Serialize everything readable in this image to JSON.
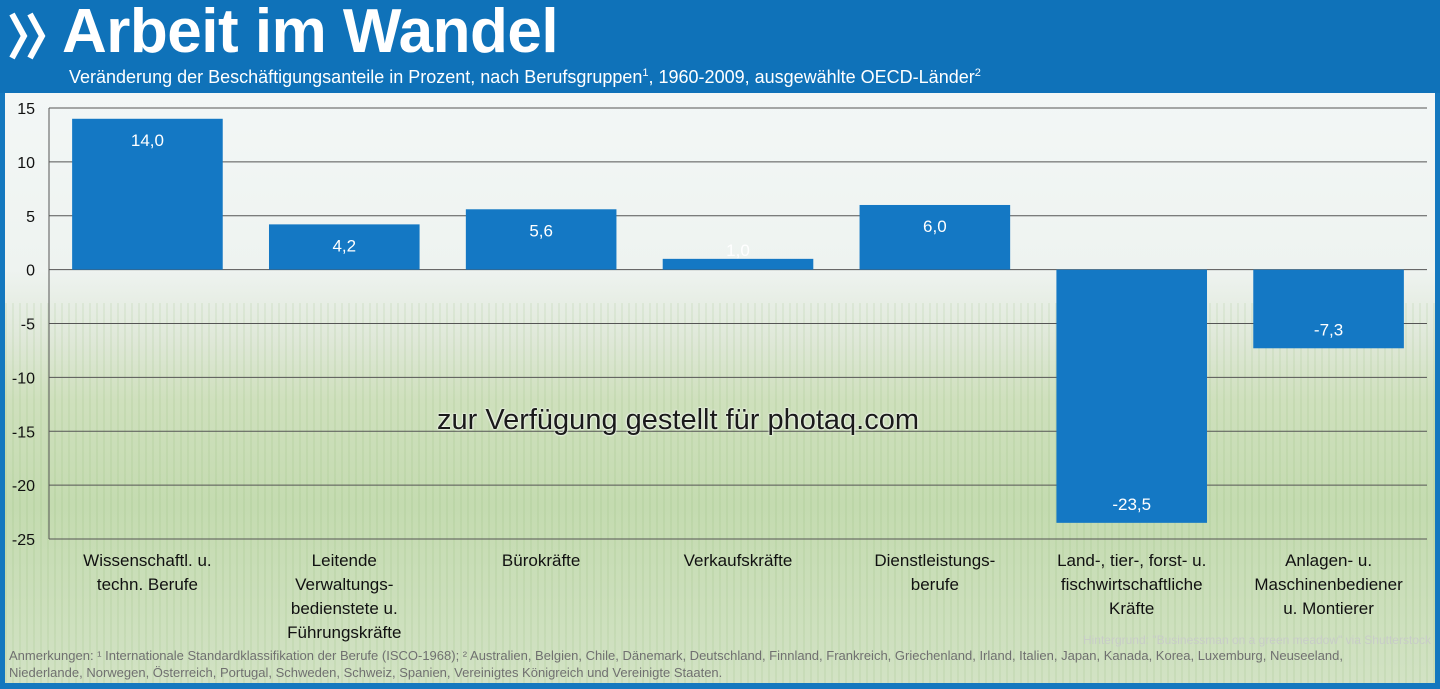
{
  "header": {
    "title": "Arbeit im Wandel",
    "subtitle_main": "Veränderung der Beschäftigungsanteile in Prozent, nach Berufsgruppen",
    "subtitle_sup1": "1",
    "subtitle_mid": ", 1960-2009, ausgewählte OECD-Länder",
    "subtitle_sup2": "2"
  },
  "watermark": "zur Verfügung gestellt für photaq.com",
  "credit": "Hintergrund: \"Businessman on a green meadow\" via Shutterstock",
  "notes": "Anmerkungen: ¹ Internationale Standardklassifikation der Berufe (ISCO-1968); ² Australien, Belgien, Chile, Dänemark, Deutschland, Finnland, Frankreich, Griechenland, Irland, Italien, Japan, Kanada, Korea, Luxemburg, Neuseeland, Niederlande, Norwegen, Österreich, Portugal, Schweden, Schweiz, Spanien, Vereinigtes Königreich und Vereinigte Staaten.",
  "colors": {
    "bar": "#1478c4",
    "header": "#0f72b9",
    "grid": "#555555"
  },
  "chart_data": {
    "type": "bar",
    "categories": [
      [
        "Wissenschaftl. u.",
        "techn. Berufe"
      ],
      [
        "Leitende",
        "Verwaltungs-",
        "bedienstete u.",
        "Führungskräfte"
      ],
      [
        "Bürokräfte"
      ],
      [
        "Verkaufskräfte"
      ],
      [
        "Dienstleistungs-",
        "berufe"
      ],
      [
        "Land-, tier-, forst- u.",
        "fischwirtschaftliche",
        "Kräfte"
      ],
      [
        "Anlagen- u.",
        "Maschinenbediener",
        "u. Montierer"
      ]
    ],
    "values": [
      14.0,
      4.2,
      5.6,
      1.0,
      6.0,
      -23.5,
      -7.3
    ],
    "value_labels": [
      "14,0",
      "4,2",
      "5,6",
      "1,0",
      "6,0",
      "-23,5",
      "-7,3"
    ],
    "ylim": [
      -25,
      15
    ],
    "yticks": [
      15,
      10,
      5,
      0,
      -5,
      -10,
      -15,
      -20,
      -25
    ],
    "grid": true
  }
}
